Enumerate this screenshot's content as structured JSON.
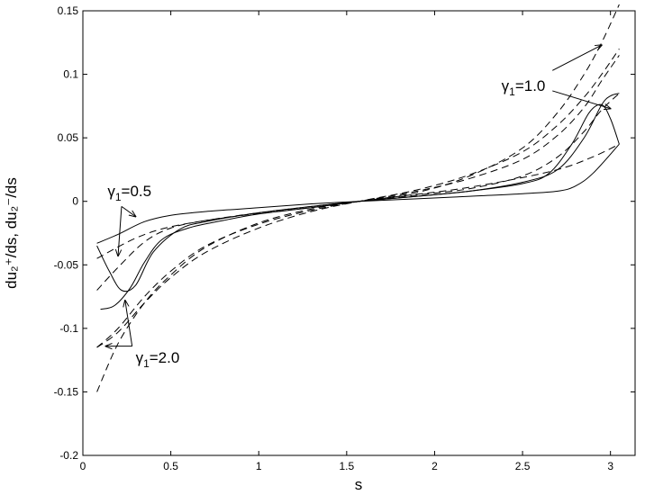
{
  "chart_data": {
    "type": "line",
    "xlabel": "s",
    "ylabel": "du₂⁺/ds, du₂⁻/ds",
    "xlim": [
      0,
      3.14
    ],
    "ylim": [
      -0.2,
      0.15
    ],
    "xticks": [
      0,
      0.5,
      1,
      1.5,
      2,
      2.5,
      3
    ],
    "yticks": [
      -0.2,
      -0.15,
      -0.1,
      -0.05,
      0,
      0.05,
      0.1,
      0.15
    ],
    "xtick_labels": [
      "0",
      "0.5",
      "1",
      "1.5",
      "2",
      "2.5",
      "3"
    ],
    "ytick_labels": [
      "-0.2",
      "-0.15",
      "-0.1",
      "-0.05",
      "0",
      "0.05",
      "0.1",
      "0.15"
    ],
    "grid": false,
    "legend": "none",
    "series": [
      {
        "style": "solid",
        "x": [
          0.08,
          0.2,
          0.35,
          0.5,
          0.7,
          1.0,
          1.3,
          1.57,
          1.9,
          2.2,
          2.5,
          2.7,
          2.8,
          2.9,
          3.05
        ],
        "y": [
          -0.033,
          -0.026,
          -0.016,
          -0.011,
          -0.008,
          -0.005,
          -0.002,
          0.0,
          0.002,
          0.004,
          0.006,
          0.008,
          0.012,
          0.022,
          0.045
        ]
      },
      {
        "style": "solid",
        "x": [
          0.08,
          0.15,
          0.22,
          0.3,
          0.4,
          0.55,
          0.7,
          1.0,
          1.3,
          1.57,
          1.9,
          2.2,
          2.5,
          2.65,
          2.78,
          2.88,
          2.95,
          3.0,
          3.05
        ],
        "y": [
          -0.035,
          -0.055,
          -0.07,
          -0.066,
          -0.04,
          -0.022,
          -0.016,
          -0.009,
          -0.004,
          0.0,
          0.004,
          0.008,
          0.014,
          0.022,
          0.045,
          0.07,
          0.076,
          0.065,
          0.045
        ]
      },
      {
        "style": "solid",
        "x": [
          0.1,
          0.18,
          0.27,
          0.35,
          0.45,
          0.6,
          0.8,
          1.0,
          1.3,
          1.57,
          1.9,
          2.2,
          2.5,
          2.7,
          2.85,
          2.95,
          3.0,
          3.05
        ],
        "y": [
          -0.085,
          -0.082,
          -0.068,
          -0.048,
          -0.03,
          -0.021,
          -0.015,
          -0.01,
          -0.005,
          0.0,
          0.004,
          0.008,
          0.015,
          0.025,
          0.05,
          0.076,
          0.083,
          0.085
        ]
      },
      {
        "style": "dashed",
        "x": [
          0.08,
          0.3,
          0.5,
          0.8,
          1.1,
          1.35,
          1.57,
          1.8,
          2.1,
          2.4,
          2.7,
          2.9,
          3.05
        ],
        "y": [
          -0.045,
          -0.029,
          -0.02,
          -0.013,
          -0.008,
          -0.004,
          0.0,
          0.004,
          0.009,
          0.016,
          0.025,
          0.035,
          0.045
        ]
      },
      {
        "style": "dashed",
        "x": [
          0.08,
          0.2,
          0.35,
          0.5,
          0.7,
          1.0,
          1.3,
          1.57,
          1.9,
          2.2,
          2.5,
          2.7,
          2.85,
          2.95,
          3.05
        ],
        "y": [
          -0.07,
          -0.052,
          -0.032,
          -0.021,
          -0.015,
          -0.009,
          -0.004,
          0.0,
          0.005,
          0.01,
          0.02,
          0.035,
          0.055,
          0.072,
          0.085
        ]
      },
      {
        "style": "dashed",
        "x": [
          0.08,
          0.2,
          0.35,
          0.5,
          0.7,
          1.0,
          1.3,
          1.57,
          1.9,
          2.2,
          2.5,
          2.7,
          2.85,
          2.95,
          3.05
        ],
        "y": [
          -0.115,
          -0.1,
          -0.075,
          -0.055,
          -0.035,
          -0.018,
          -0.007,
          0.0,
          0.008,
          0.018,
          0.033,
          0.052,
          0.074,
          0.095,
          0.115
        ]
      },
      {
        "style": "dashed",
        "x": [
          0.08,
          0.2,
          0.35,
          0.5,
          0.7,
          1.0,
          1.3,
          1.57,
          1.9,
          2.2,
          2.5,
          2.7,
          2.85,
          2.95,
          3.05
        ],
        "y": [
          -0.115,
          -0.103,
          -0.08,
          -0.06,
          -0.04,
          -0.021,
          -0.008,
          0.0,
          0.009,
          0.021,
          0.039,
          0.06,
          0.082,
          0.1,
          0.12
        ]
      },
      {
        "style": "dashed",
        "x": [
          0.08,
          0.2,
          0.35,
          0.5,
          0.7,
          1.0,
          1.3,
          1.57,
          1.9,
          2.2,
          2.5,
          2.7,
          2.85,
          2.95,
          3.05
        ],
        "y": [
          -0.15,
          -0.112,
          -0.08,
          -0.058,
          -0.036,
          -0.017,
          -0.006,
          0.0,
          0.007,
          0.02,
          0.042,
          0.07,
          0.1,
          0.125,
          0.155
        ]
      }
    ],
    "annotations": [
      {
        "name": "gamma-1.0",
        "symbol": "γ",
        "sub": "1",
        "text": "=1.0",
        "x": 2.38,
        "y": 0.087,
        "arrows": [
          [
            2.67,
            0.103,
            2.95,
            0.123
          ],
          [
            2.67,
            0.087,
            3.0,
            0.073
          ]
        ]
      },
      {
        "name": "gamma-0.5",
        "symbol": "γ",
        "sub": "1",
        "text": "=0.5",
        "x": 0.14,
        "y": 0.004,
        "arrows": [
          [
            0.22,
            -0.004,
            0.3,
            -0.012
          ],
          [
            0.22,
            -0.004,
            0.2,
            -0.043
          ]
        ]
      },
      {
        "name": "gamma-2.0",
        "symbol": "γ",
        "sub": "1",
        "text": "=2.0",
        "x": 0.3,
        "y": -0.127,
        "arrows": [
          [
            0.28,
            -0.114,
            0.13,
            -0.114
          ],
          [
            0.28,
            -0.114,
            0.24,
            -0.078
          ]
        ]
      }
    ]
  }
}
